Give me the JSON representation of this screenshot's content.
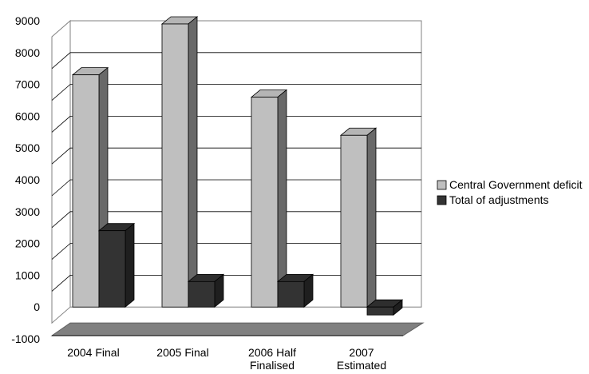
{
  "chart_data": {
    "type": "bar",
    "categories": [
      [
        "2004 Final"
      ],
      [
        "2005 Final"
      ],
      [
        "2006 Half",
        "Finalised"
      ],
      [
        "2007",
        "Estimated"
      ]
    ],
    "series": [
      {
        "name": "Central Government deficit",
        "values": [
          7300,
          8900,
          6600,
          5400
        ],
        "color": "#bfbfbf"
      },
      {
        "name": "Total of adjustments",
        "values": [
          2400,
          800,
          800,
          -250
        ],
        "color": "#333333"
      }
    ],
    "ylim": [
      -1000,
      9000
    ],
    "yticks": [
      -1000,
      0,
      1000,
      2000,
      3000,
      4000,
      5000,
      6000,
      7000,
      8000,
      9000
    ],
    "grid": true,
    "legend_position": "right",
    "three_d": true
  }
}
